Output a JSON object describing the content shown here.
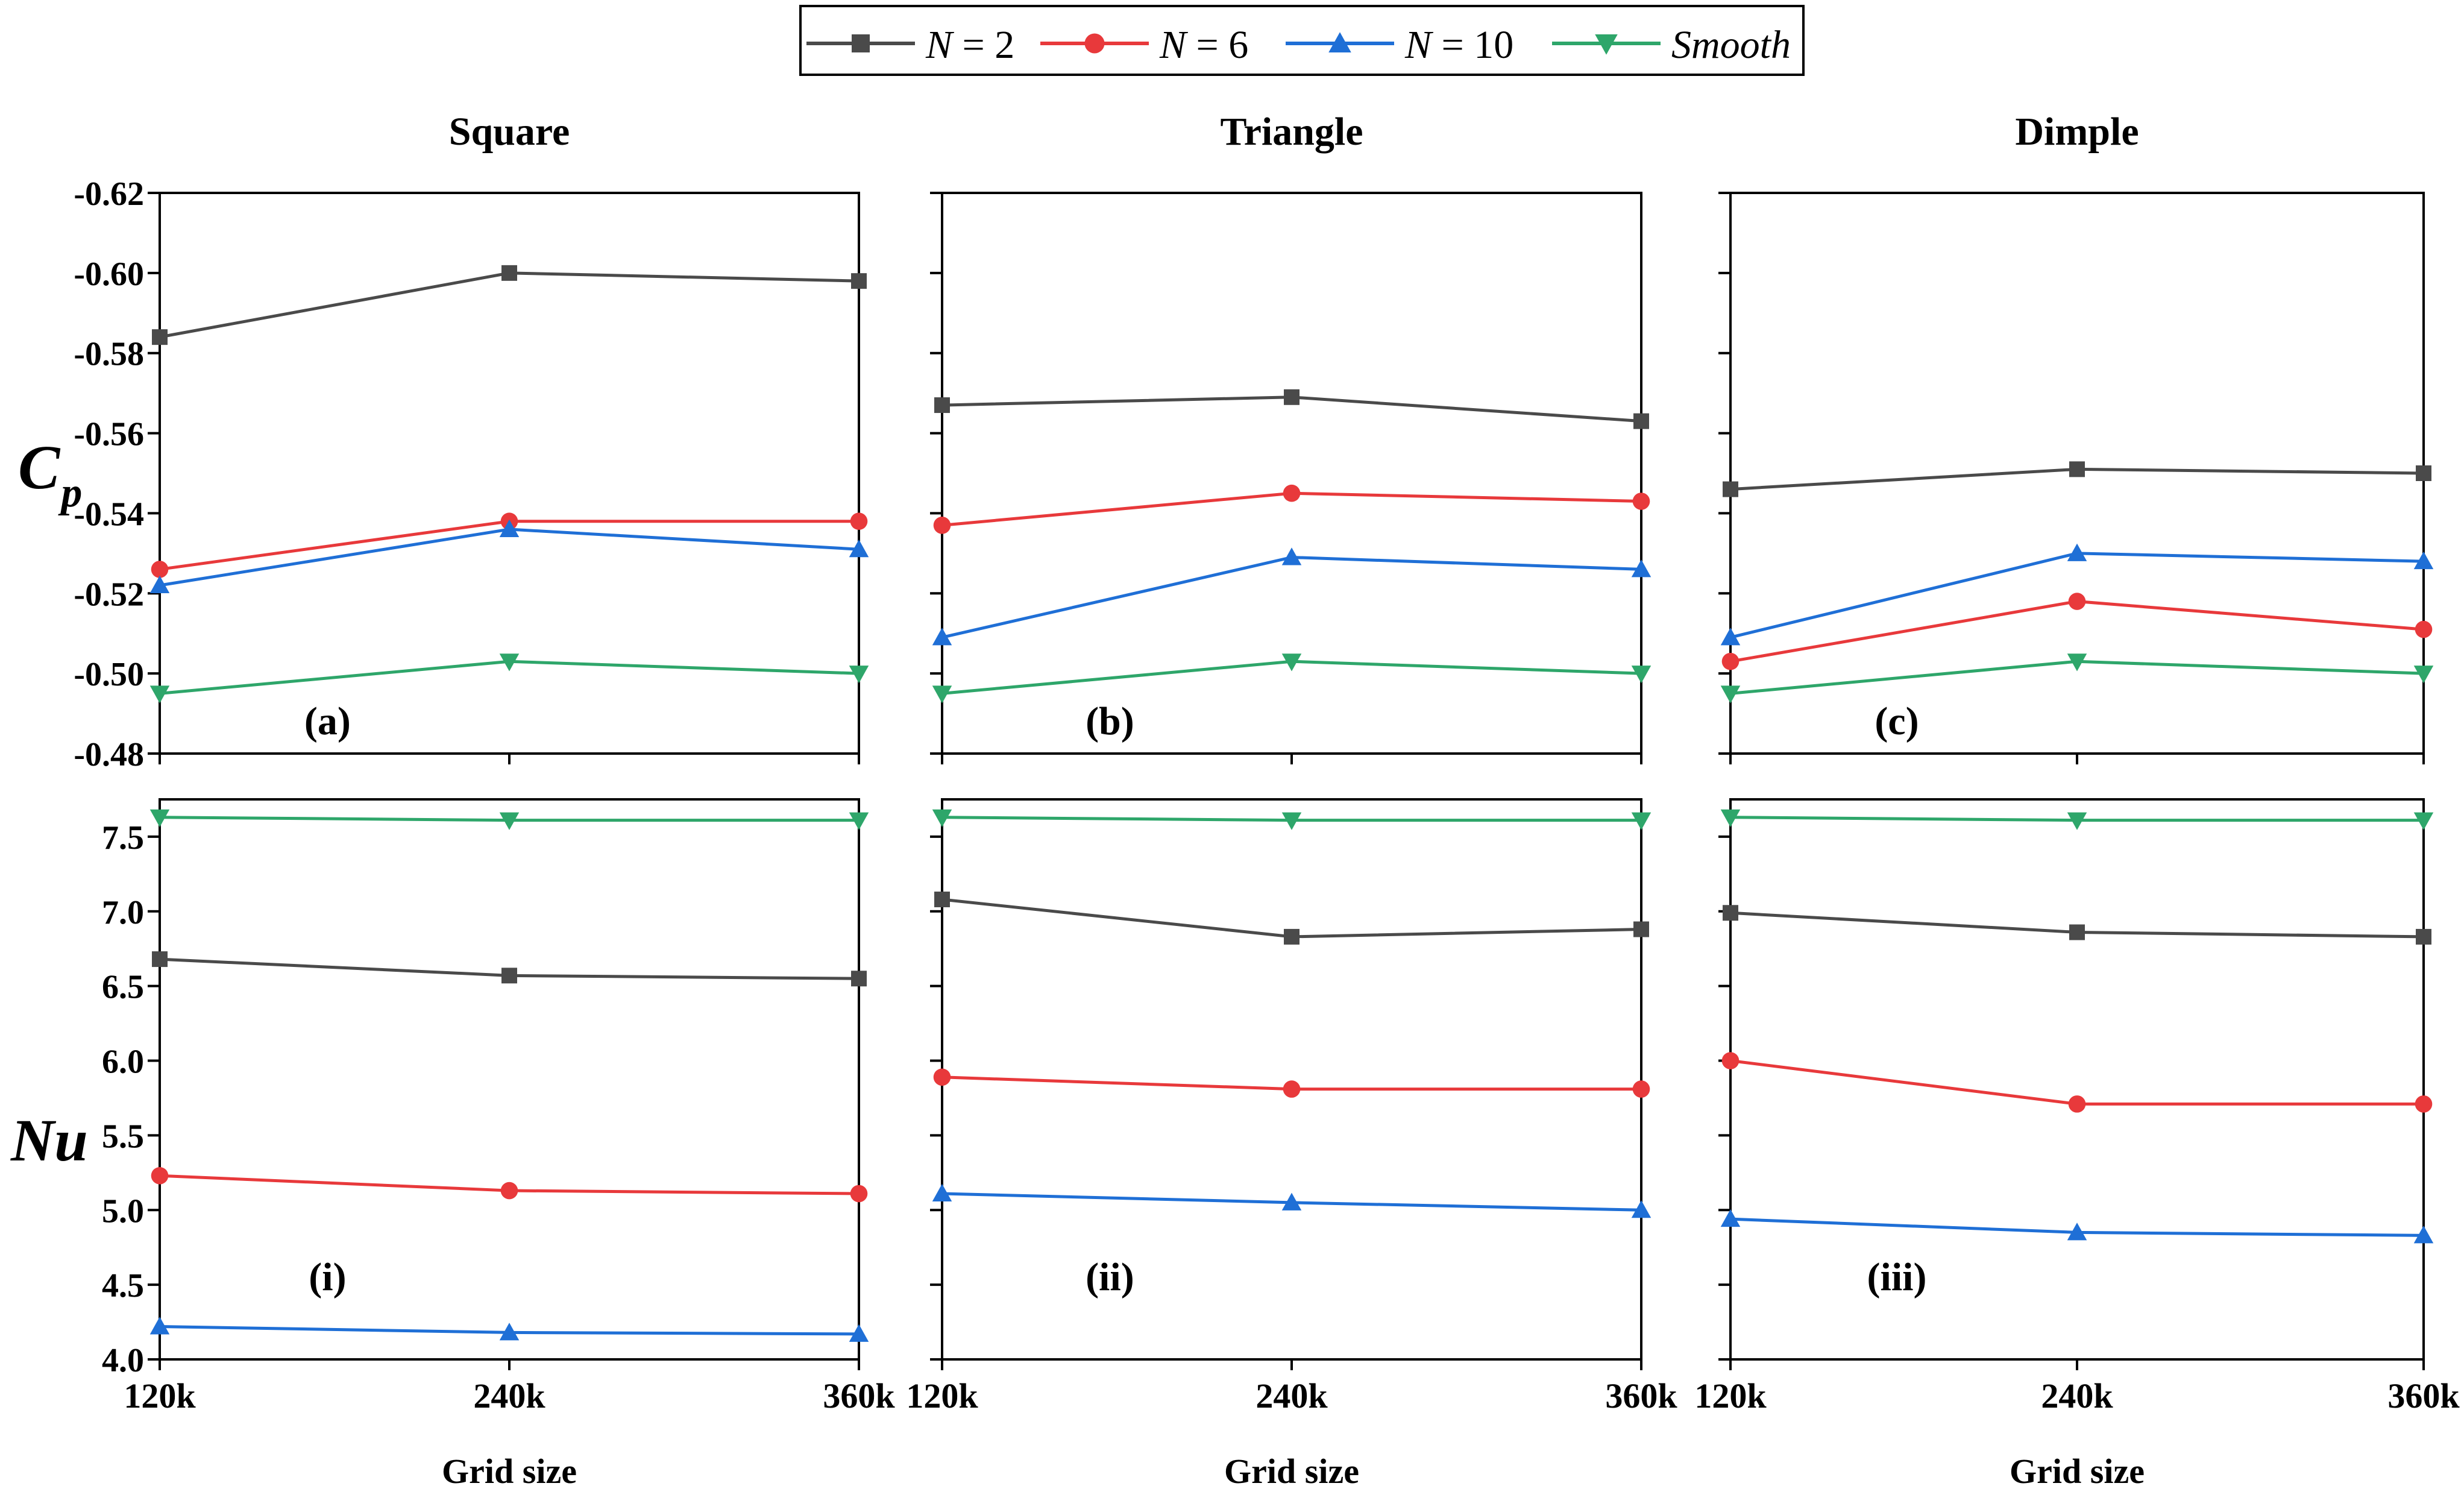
{
  "legend": [
    {
      "label_pre": "N",
      "label_post": " = 2",
      "color": "#4a4a4a",
      "marker": "square",
      "id": "n2"
    },
    {
      "label_pre": "N",
      "label_post": " = 6",
      "color": "#e8393b",
      "marker": "circle",
      "id": "n6"
    },
    {
      "label_pre": "N",
      "label_post": " = 10",
      "color": "#1f6fd6",
      "marker": "triangle-up",
      "id": "n10"
    },
    {
      "label_pre": "Smooth",
      "label_post": "",
      "color": "#2ea66a",
      "marker": "triangle-down",
      "id": "smooth"
    }
  ],
  "column_titles": [
    "Square",
    "Triangle",
    "Dimple"
  ],
  "row_labels": {
    "top_main": "C",
    "top_sub": "p",
    "bottom": "Nu"
  },
  "xlabel": "Grid size",
  "chart_data": [
    {
      "type": "line",
      "title": "Square",
      "panel_label": "(a)",
      "ylabel": "Cp",
      "categories": [
        "120k",
        "240k",
        "360k"
      ],
      "ylim": [
        -0.48,
        -0.62
      ],
      "inverted": true,
      "yticks": [
        -0.62,
        -0.6,
        -0.58,
        -0.56,
        -0.54,
        -0.52,
        -0.5,
        -0.48
      ],
      "ytick_labels": [
        "-0.62",
        "-0.60",
        "-0.58",
        "-0.56",
        "-0.54",
        "-0.52",
        "-0.50",
        "-0.48"
      ],
      "series": [
        {
          "name": "N = 2",
          "values": [
            -0.584,
            -0.6,
            -0.598
          ]
        },
        {
          "name": "N = 6",
          "values": [
            -0.526,
            -0.538,
            -0.538
          ]
        },
        {
          "name": "N = 10",
          "values": [
            -0.522,
            -0.536,
            -0.531
          ]
        },
        {
          "name": "Smooth",
          "values": [
            -0.495,
            -0.503,
            -0.5
          ]
        }
      ]
    },
    {
      "type": "line",
      "title": "Triangle",
      "panel_label": "(b)",
      "ylabel": "Cp",
      "categories": [
        "120k",
        "240k",
        "360k"
      ],
      "ylim": [
        -0.48,
        -0.62
      ],
      "inverted": true,
      "series": [
        {
          "name": "N = 2",
          "values": [
            -0.567,
            -0.569,
            -0.563
          ]
        },
        {
          "name": "N = 6",
          "values": [
            -0.537,
            -0.545,
            -0.543
          ]
        },
        {
          "name": "N = 10",
          "values": [
            -0.509,
            -0.529,
            -0.526
          ]
        },
        {
          "name": "Smooth",
          "values": [
            -0.495,
            -0.503,
            -0.5
          ]
        }
      ]
    },
    {
      "type": "line",
      "title": "Dimple",
      "panel_label": "(c)",
      "ylabel": "Cp",
      "categories": [
        "120k",
        "240k",
        "360k"
      ],
      "ylim": [
        -0.48,
        -0.62
      ],
      "inverted": true,
      "series": [
        {
          "name": "N = 2",
          "values": [
            -0.546,
            -0.551,
            -0.55
          ]
        },
        {
          "name": "N = 6",
          "values": [
            -0.503,
            -0.518,
            -0.511
          ]
        },
        {
          "name": "N = 10",
          "values": [
            -0.509,
            -0.53,
            -0.528
          ]
        },
        {
          "name": "Smooth",
          "values": [
            -0.495,
            -0.503,
            -0.5
          ]
        }
      ]
    },
    {
      "type": "line",
      "panel_label": "(i)",
      "ylabel": "Nu",
      "xlabel": "Grid size",
      "categories": [
        "120k",
        "240k",
        "360k"
      ],
      "ylim": [
        4.0,
        7.75
      ],
      "yticks": [
        4.0,
        4.5,
        5.0,
        5.5,
        6.0,
        6.5,
        7.0,
        7.5
      ],
      "ytick_labels": [
        "4.0",
        "4.5",
        "5.0",
        "5.5",
        "6.0",
        "6.5",
        "7.0",
        "7.5"
      ],
      "series": [
        {
          "name": "N = 2",
          "values": [
            6.68,
            6.57,
            6.55
          ]
        },
        {
          "name": "N = 6",
          "values": [
            5.23,
            5.13,
            5.11
          ]
        },
        {
          "name": "N = 10",
          "values": [
            4.22,
            4.18,
            4.17
          ]
        },
        {
          "name": "Smooth",
          "values": [
            7.63,
            7.61,
            7.61
          ]
        }
      ]
    },
    {
      "type": "line",
      "panel_label": "(ii)",
      "ylabel": "Nu",
      "xlabel": "Grid size",
      "categories": [
        "120k",
        "240k",
        "360k"
      ],
      "ylim": [
        4.0,
        7.75
      ],
      "series": [
        {
          "name": "N = 2",
          "values": [
            7.08,
            6.83,
            6.88
          ]
        },
        {
          "name": "N = 6",
          "values": [
            5.89,
            5.81,
            5.81
          ]
        },
        {
          "name": "N = 10",
          "values": [
            5.11,
            5.05,
            5.0
          ]
        },
        {
          "name": "Smooth",
          "values": [
            7.63,
            7.61,
            7.61
          ]
        }
      ]
    },
    {
      "type": "line",
      "panel_label": "(iii)",
      "ylabel": "Nu",
      "xlabel": "Grid size",
      "categories": [
        "120k",
        "240k",
        "360k"
      ],
      "ylim": [
        4.0,
        7.75
      ],
      "series": [
        {
          "name": "N = 2",
          "values": [
            6.99,
            6.86,
            6.83
          ]
        },
        {
          "name": "N = 6",
          "values": [
            6.0,
            5.71,
            5.71
          ]
        },
        {
          "name": "N = 10",
          "values": [
            4.94,
            4.85,
            4.83
          ]
        },
        {
          "name": "Smooth",
          "values": [
            7.63,
            7.61,
            7.61
          ]
        }
      ]
    }
  ]
}
